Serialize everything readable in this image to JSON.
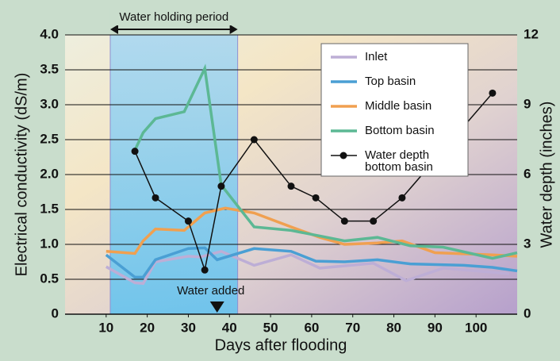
{
  "chart_data": {
    "type": "line",
    "ylabel": "Electrical conductivity (dS/m)",
    "y2label": "Water depth (inches)",
    "xlabel": "Days after flooding",
    "holding_period": {
      "label": "Water holding period",
      "start": 11,
      "end": 42
    },
    "water_added": {
      "label": "Water added",
      "x": 37
    },
    "xlim": [
      0,
      110
    ],
    "xticks": [
      10,
      20,
      30,
      40,
      50,
      60,
      70,
      80,
      90,
      100
    ],
    "ylim": [
      0,
      4
    ],
    "yticks": [
      0,
      0.5,
      {
        "value": 1,
        "label": "1.0"
      },
      1.5,
      {
        "value": 2,
        "label": "2.0"
      },
      2.5,
      {
        "value": 3,
        "label": "3.0"
      },
      3.5,
      {
        "value": 4,
        "label": "4.0"
      }
    ],
    "y2lim": [
      0,
      12
    ],
    "y2ticks": [
      0,
      3,
      6,
      9,
      12
    ],
    "grid": true,
    "series": [
      {
        "name": "Inlet",
        "color": "#bdaed6",
        "x": [
          10,
          17,
          19,
          22,
          30,
          33,
          38,
          46,
          55,
          62,
          75,
          83,
          92,
          108
        ],
        "values": [
          0.68,
          0.45,
          0.44,
          0.75,
          0.83,
          0.82,
          0.9,
          0.7,
          0.85,
          0.66,
          0.73,
          0.48,
          0.66,
          0.58
        ]
      },
      {
        "name": "Top basin",
        "color": "#4a9fd4",
        "x": [
          10,
          17,
          19,
          22,
          30,
          34,
          37,
          46,
          55,
          61,
          68,
          76,
          84,
          97,
          104,
          110
        ],
        "values": [
          0.85,
          0.53,
          0.53,
          0.78,
          0.94,
          0.95,
          0.78,
          0.94,
          0.9,
          0.76,
          0.75,
          0.78,
          0.72,
          0.7,
          0.67,
          0.62
        ]
      },
      {
        "name": "Middle basin",
        "color": "#f0a050",
        "x": [
          10,
          17,
          19,
          22,
          29,
          34,
          39,
          46,
          55,
          62,
          68,
          76,
          82,
          90,
          104,
          110
        ],
        "values": [
          0.9,
          0.87,
          1.05,
          1.22,
          1.2,
          1.45,
          1.52,
          1.45,
          1.25,
          1.1,
          1.0,
          1.02,
          1.05,
          0.88,
          0.85,
          0.83
        ]
      },
      {
        "name": "Bottom basin",
        "color": "#5cb894",
        "x": [
          17,
          19,
          22,
          29,
          34,
          38,
          46,
          55,
          62,
          68,
          76,
          84,
          92,
          104,
          110
        ],
        "values": [
          2.35,
          2.6,
          2.8,
          2.9,
          3.52,
          1.85,
          1.25,
          1.2,
          1.12,
          1.05,
          1.1,
          0.98,
          0.96,
          0.8,
          0.88
        ]
      },
      {
        "name": "Water depth bottom basin",
        "color": "#111111",
        "axis": "y2",
        "markers": true,
        "x": [
          17,
          22,
          30,
          34,
          38,
          46,
          55,
          61,
          68,
          75,
          82,
          104
        ],
        "values": [
          7,
          5,
          4,
          1.9,
          5.5,
          7.5,
          5.5,
          5,
          4,
          4,
          5,
          9.5
        ]
      }
    ]
  }
}
